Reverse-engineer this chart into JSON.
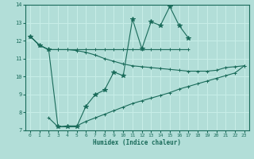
{
  "xlabel": "Humidex (Indice chaleur)",
  "bg_color": "#b2ded8",
  "grid_color": "#c8eee8",
  "line_color": "#1a6b5a",
  "xlim": [
    -0.5,
    23.5
  ],
  "ylim": [
    7,
    14
  ],
  "xticks": [
    0,
    1,
    2,
    3,
    4,
    5,
    6,
    7,
    8,
    9,
    10,
    11,
    12,
    13,
    14,
    15,
    16,
    17,
    18,
    19,
    20,
    21,
    22,
    23
  ],
  "yticks": [
    7,
    8,
    9,
    10,
    11,
    12,
    13,
    14
  ],
  "series": [
    {
      "x": [
        0,
        1,
        2,
        3,
        4,
        5,
        6,
        7,
        8,
        9,
        10,
        11,
        12,
        13,
        14,
        15,
        16,
        17,
        18,
        19,
        20,
        21,
        22,
        23
      ],
      "y": [
        12.25,
        11.75,
        11.5,
        7.2,
        7.2,
        7.2,
        8.35,
        9.0,
        9.25,
        10.25,
        10.05,
        13.2,
        11.55,
        13.05,
        12.85,
        13.9,
        12.85,
        12.15,
        null,
        null,
        null,
        null,
        null,
        null
      ],
      "marker": "*",
      "ms": 4
    },
    {
      "x": [
        0,
        1,
        2,
        3,
        4,
        5,
        6,
        7,
        8,
        9,
        10,
        11,
        12,
        13,
        14,
        15,
        16,
        17,
        18,
        19,
        20,
        21,
        22,
        23
      ],
      "y": [
        12.25,
        11.75,
        11.5,
        11.5,
        11.5,
        11.5,
        11.5,
        11.5,
        11.5,
        11.5,
        11.5,
        11.5,
        11.5,
        11.5,
        11.5,
        11.5,
        11.5,
        11.5,
        null,
        null,
        null,
        null,
        null,
        null
      ],
      "marker": "+",
      "ms": 3
    },
    {
      "x": [
        0,
        1,
        2,
        3,
        4,
        5,
        6,
        7,
        8,
        9,
        10,
        11,
        12,
        13,
        14,
        15,
        16,
        17,
        18,
        19,
        20,
        21,
        22,
        23
      ],
      "y": [
        12.25,
        11.75,
        11.5,
        11.5,
        11.5,
        11.45,
        11.35,
        11.2,
        11.0,
        10.85,
        10.7,
        10.6,
        10.55,
        10.5,
        10.45,
        10.4,
        10.35,
        10.3,
        10.3,
        10.3,
        10.35,
        10.5,
        10.55,
        10.6
      ],
      "marker": "+",
      "ms": 3
    },
    {
      "x": [
        0,
        1,
        2,
        3,
        4,
        5,
        6,
        7,
        8,
        9,
        10,
        11,
        12,
        13,
        14,
        15,
        16,
        17,
        18,
        19,
        20,
        21,
        22,
        23
      ],
      "y": [
        null,
        null,
        7.7,
        7.2,
        7.25,
        7.25,
        7.5,
        7.7,
        7.9,
        8.1,
        8.3,
        8.5,
        8.65,
        8.8,
        8.95,
        9.1,
        9.3,
        9.45,
        9.6,
        9.75,
        9.9,
        10.05,
        10.2,
        10.6
      ],
      "marker": "+",
      "ms": 3
    }
  ]
}
